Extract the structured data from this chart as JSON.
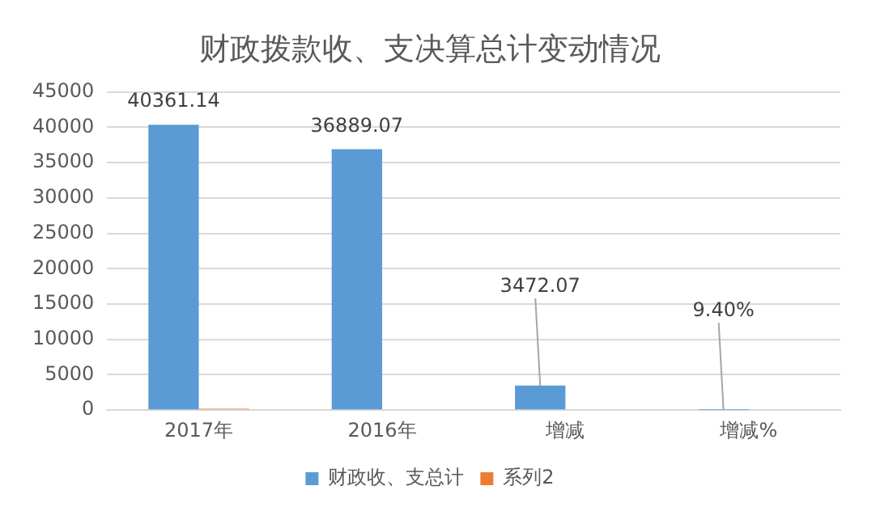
{
  "chart_data": {
    "type": "bar",
    "title": "财政拨款收、支决算总计变动情况",
    "categories": [
      "2017年",
      "2016年",
      "增减",
      "增减%"
    ],
    "series": [
      {
        "name": "财政收、支总计",
        "color": "#5b9bd5",
        "values": [
          40361.14,
          36889.07,
          3472.07,
          9.4
        ],
        "value_labels": [
          "40361.14",
          "36889.07",
          "3472.07",
          "9.40%"
        ]
      },
      {
        "name": "系列2",
        "color": "#ed7d31",
        "values": [
          200,
          0,
          0,
          0
        ]
      }
    ],
    "ylim": [
      0,
      45000
    ],
    "yticks": [
      0,
      5000,
      10000,
      15000,
      20000,
      25000,
      30000,
      35000,
      40000,
      45000
    ],
    "grid": "y",
    "legend": "bottom"
  }
}
